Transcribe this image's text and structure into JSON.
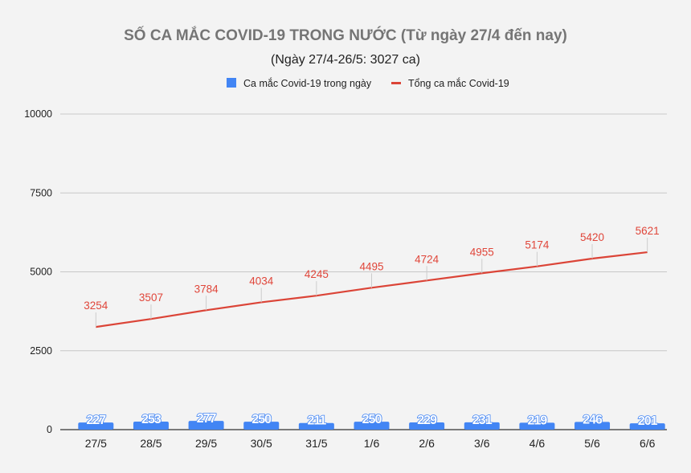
{
  "chart_data": {
    "type": "bar+line",
    "title": "SỐ CA MẮC COVID-19 TRONG NƯỚC (Từ ngày 27/4 đến nay)",
    "subtitle": "(Ngày 27/4-26/5: 3027 ca)",
    "categories": [
      "27/5",
      "28/5",
      "29/5",
      "30/5",
      "31/5",
      "1/6",
      "2/6",
      "3/6",
      "4/6",
      "5/6",
      "6/6"
    ],
    "series": [
      {
        "name": "Ca mắc Covid-19 trong ngày",
        "type": "bar",
        "color": "#4285f4",
        "values": [
          227,
          253,
          277,
          250,
          211,
          250,
          229,
          231,
          219,
          246,
          201
        ]
      },
      {
        "name": "Tổng ca mắc Covid-19",
        "type": "line",
        "color": "#db4437",
        "values": [
          3254,
          3507,
          3784,
          4034,
          4245,
          4495,
          4724,
          4955,
          5174,
          5420,
          5621
        ]
      }
    ],
    "ylim": [
      0,
      10000
    ],
    "yticks": [
      0,
      2500,
      5000,
      7500,
      10000
    ],
    "grid": true,
    "legend": "top"
  }
}
